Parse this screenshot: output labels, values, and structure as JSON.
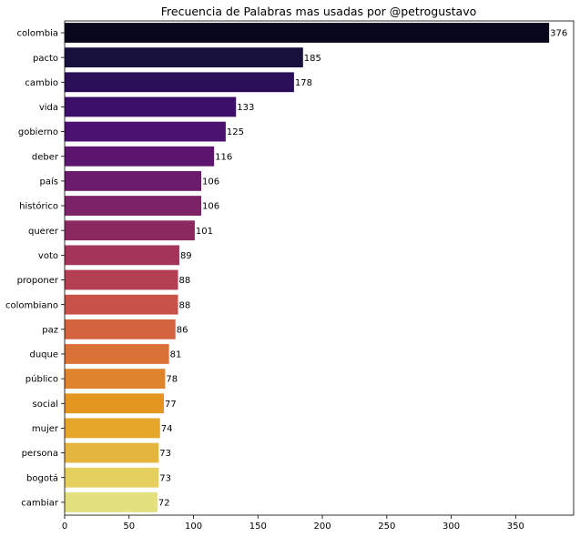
{
  "chart_data": {
    "type": "bar",
    "orientation": "horizontal",
    "title": "Frecuencia de Palabras mas usadas por @petrogustavo",
    "xlabel": "",
    "ylabel": "",
    "xlim": [
      0,
      395
    ],
    "xticks": [
      0,
      50,
      100,
      150,
      200,
      250,
      300,
      350
    ],
    "grid": false,
    "legend": "none",
    "categories": [
      "colombia",
      "pacto",
      "cambio",
      "vida",
      "gobierno",
      "deber",
      "país",
      "histórico",
      "querer",
      "voto",
      "proponer",
      "colombiano",
      "paz",
      "duque",
      "público",
      "social",
      "mujer",
      "persona",
      "bogotá",
      "cambiar"
    ],
    "values": [
      376,
      185,
      178,
      133,
      125,
      116,
      106,
      106,
      101,
      89,
      88,
      88,
      86,
      81,
      78,
      77,
      74,
      73,
      73,
      72
    ],
    "colors": [
      "#07061a",
      "#170f3c",
      "#2a0e57",
      "#3c0f6a",
      "#4c1270",
      "#5c166f",
      "#6c1c6c",
      "#7c2367",
      "#8c2860",
      "#a3345a",
      "#b53f52",
      "#c8514a",
      "#d2643f",
      "#da7137",
      "#df842c",
      "#e2951f",
      "#e5a62a",
      "#e4b63e",
      "#e4cf5f",
      "#e3e07f"
    ]
  }
}
